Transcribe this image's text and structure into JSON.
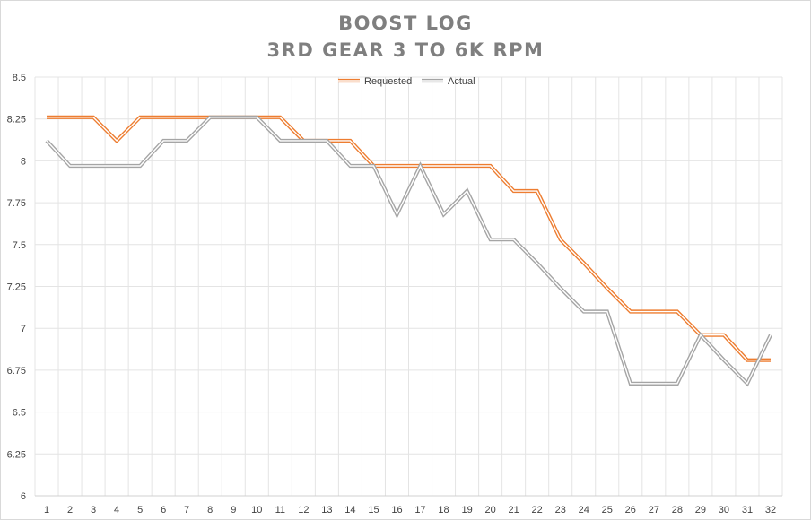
{
  "chart_data": {
    "type": "line",
    "title": [
      "BOOST LOG",
      "3RD GEAR 3 TO 6K RPM"
    ],
    "xlabel": "",
    "ylabel": "",
    "x": [
      1,
      2,
      3,
      4,
      5,
      6,
      7,
      8,
      9,
      10,
      11,
      12,
      13,
      14,
      15,
      16,
      17,
      18,
      19,
      20,
      21,
      22,
      23,
      24,
      25,
      26,
      27,
      28,
      29,
      30,
      31,
      32
    ],
    "yticks": [
      "6",
      "6.25",
      "6.5",
      "6.75",
      "7",
      "7.25",
      "7.5",
      "7.75",
      "8",
      "8.25",
      "8.5"
    ],
    "ylim": [
      6,
      8.5
    ],
    "grid": true,
    "legend_position": "top-center",
    "series": [
      {
        "name": "Requested",
        "color": "#ed7d31",
        "values": [
          8.26,
          8.26,
          8.26,
          8.12,
          8.26,
          8.26,
          8.26,
          8.26,
          8.26,
          8.26,
          8.26,
          8.12,
          8.12,
          8.12,
          7.97,
          7.97,
          7.97,
          7.97,
          7.97,
          7.97,
          7.82,
          7.82,
          7.53,
          7.39,
          7.24,
          7.1,
          7.1,
          7.1,
          6.96,
          6.96,
          6.81,
          6.81
        ]
      },
      {
        "name": "Actual",
        "color": "#a5a5a5",
        "values": [
          8.12,
          7.97,
          7.97,
          7.97,
          7.97,
          8.12,
          8.12,
          8.26,
          8.26,
          8.26,
          8.12,
          8.12,
          8.12,
          7.97,
          7.97,
          7.68,
          7.97,
          7.68,
          7.82,
          7.53,
          7.53,
          7.39,
          7.24,
          7.1,
          7.1,
          6.67,
          6.67,
          6.67,
          6.96,
          6.81,
          6.67,
          6.96
        ]
      }
    ]
  }
}
